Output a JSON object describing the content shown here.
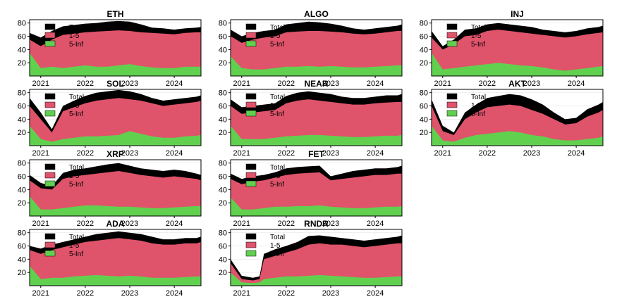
{
  "colors": {
    "total": "#000000",
    "short": "#df536b",
    "long": "#61d04f",
    "axis": "#000000",
    "background": "#ffffff"
  },
  "chart_data": [
    {
      "type": "area",
      "title": "ETH",
      "x": [
        2020.75,
        2021.0,
        2021.25,
        2021.5,
        2021.75,
        2022.0,
        2022.25,
        2022.5,
        2022.75,
        2023.0,
        2023.25,
        2023.5,
        2023.75,
        2024.0,
        2024.25,
        2024.5,
        2024.6
      ],
      "series": [
        {
          "name": "Total",
          "values": [
            65,
            58,
            68,
            75,
            77,
            79,
            80,
            82,
            83,
            82,
            78,
            73,
            72,
            70,
            72,
            73,
            74
          ]
        },
        {
          "name": "1-5",
          "values": [
            55,
            45,
            55,
            62,
            64,
            66,
            67,
            68,
            69,
            68,
            66,
            65,
            64,
            63,
            65,
            66,
            66
          ]
        },
        {
          "name": "5-Inf",
          "values": [
            35,
            12,
            14,
            12,
            14,
            16,
            14,
            14,
            16,
            18,
            15,
            13,
            12,
            12,
            14,
            14,
            14
          ]
        }
      ],
      "ylim": [
        0,
        85
      ],
      "yticks": [
        20,
        40,
        60,
        80
      ],
      "xticks": [
        "2021",
        "2022",
        "2023",
        "2024"
      ],
      "xlim": [
        2020.75,
        2024.6
      ],
      "legend": "top-left"
    },
    {
      "type": "area",
      "title": "ALGO",
      "x": [
        2020.75,
        2021.0,
        2021.25,
        2021.5,
        2021.75,
        2022.0,
        2022.25,
        2022.5,
        2022.75,
        2023.0,
        2023.25,
        2023.5,
        2023.75,
        2024.0,
        2024.25,
        2024.5,
        2024.6
      ],
      "series": [
        {
          "name": "Total",
          "values": [
            70,
            60,
            65,
            68,
            70,
            78,
            80,
            82,
            81,
            79,
            76,
            72,
            70,
            72,
            74,
            76,
            78
          ]
        },
        {
          "name": "1-5",
          "values": [
            60,
            50,
            55,
            58,
            60,
            66,
            67,
            68,
            68,
            67,
            66,
            64,
            63,
            64,
            66,
            68,
            68
          ]
        },
        {
          "name": "5-Inf",
          "values": [
            30,
            12,
            10,
            10,
            12,
            14,
            14,
            15,
            14,
            15,
            14,
            13,
            13,
            14,
            15,
            16,
            16
          ]
        }
      ],
      "ylim": [
        0,
        85
      ],
      "yticks": [
        20,
        40,
        60,
        80
      ],
      "xticks": [
        "2021",
        "2022",
        "2023",
        "2024"
      ],
      "xlim": [
        2020.75,
        2024.6
      ],
      "legend": "top-left"
    },
    {
      "type": "area",
      "title": "INJ",
      "x": [
        2020.75,
        2021.0,
        2021.25,
        2021.5,
        2021.75,
        2022.0,
        2022.25,
        2022.5,
        2022.75,
        2023.0,
        2023.25,
        2023.5,
        2023.75,
        2024.0,
        2024.25,
        2024.5,
        2024.6
      ],
      "series": [
        {
          "name": "Total",
          "values": [
            68,
            45,
            55,
            70,
            72,
            78,
            80,
            78,
            76,
            74,
            70,
            68,
            66,
            68,
            72,
            74,
            76
          ]
        },
        {
          "name": "1-5",
          "values": [
            58,
            40,
            48,
            60,
            62,
            68,
            70,
            68,
            66,
            64,
            62,
            60,
            58,
            60,
            63,
            65,
            66
          ]
        },
        {
          "name": "5-Inf",
          "values": [
            35,
            10,
            12,
            14,
            16,
            18,
            20,
            18,
            16,
            15,
            13,
            10,
            8,
            10,
            12,
            14,
            15
          ]
        }
      ],
      "ylim": [
        0,
        85
      ],
      "yticks": [
        20,
        40,
        60,
        80
      ],
      "xticks": [
        "2021",
        "2022",
        "2023",
        "2024"
      ],
      "xlim": [
        2020.75,
        2024.6
      ],
      "legend": "top-left"
    },
    {
      "type": "area",
      "title": "SOL",
      "x": [
        2020.75,
        2021.0,
        2021.25,
        2021.5,
        2021.75,
        2022.0,
        2022.25,
        2022.5,
        2022.75,
        2023.0,
        2023.25,
        2023.5,
        2023.75,
        2024.0,
        2024.25,
        2024.5,
        2024.6
      ],
      "series": [
        {
          "name": "Total",
          "values": [
            72,
            50,
            25,
            60,
            68,
            75,
            80,
            82,
            84,
            82,
            78,
            72,
            68,
            70,
            72,
            74,
            76
          ]
        },
        {
          "name": "1-5",
          "values": [
            60,
            40,
            20,
            52,
            58,
            64,
            68,
            70,
            72,
            70,
            68,
            64,
            60,
            62,
            64,
            66,
            68
          ]
        },
        {
          "name": "5-Inf",
          "values": [
            30,
            10,
            6,
            10,
            12,
            14,
            14,
            15,
            16,
            22,
            18,
            14,
            12,
            12,
            14,
            15,
            16
          ]
        }
      ],
      "ylim": [
        0,
        85
      ],
      "yticks": [
        20,
        40,
        60,
        80
      ],
      "xticks": [
        "2021",
        "2022",
        "2023",
        "2024"
      ],
      "xlim": [
        2020.75,
        2024.6
      ],
      "legend": "top-left"
    },
    {
      "type": "area",
      "title": "NEAR",
      "x": [
        2020.75,
        2021.0,
        2021.25,
        2021.5,
        2021.75,
        2022.0,
        2022.25,
        2022.5,
        2022.75,
        2023.0,
        2023.25,
        2023.5,
        2023.75,
        2024.0,
        2024.25,
        2024.5,
        2024.6
      ],
      "series": [
        {
          "name": "Total",
          "values": [
            70,
            58,
            60,
            62,
            64,
            75,
            80,
            82,
            80,
            78,
            74,
            72,
            72,
            74,
            76,
            76,
            78
          ]
        },
        {
          "name": "1-5",
          "values": [
            60,
            48,
            50,
            52,
            54,
            64,
            68,
            70,
            68,
            66,
            64,
            62,
            62,
            64,
            65,
            66,
            66
          ]
        },
        {
          "name": "5-Inf",
          "values": [
            30,
            10,
            10,
            10,
            12,
            14,
            15,
            16,
            16,
            15,
            14,
            13,
            13,
            14,
            15,
            15,
            16
          ]
        }
      ],
      "ylim": [
        0,
        85
      ],
      "yticks": [
        20,
        40,
        60,
        80
      ],
      "xticks": [
        "2021",
        "2022",
        "2023",
        "2024"
      ],
      "xlim": [
        2020.75,
        2024.6
      ],
      "legend": "top-left"
    },
    {
      "type": "area",
      "title": "AKT",
      "x": [
        2020.75,
        2021.0,
        2021.25,
        2021.5,
        2021.75,
        2022.0,
        2022.25,
        2022.5,
        2022.75,
        2023.0,
        2023.25,
        2023.5,
        2023.75,
        2024.0,
        2024.25,
        2024.5,
        2024.6
      ],
      "series": [
        {
          "name": "Total",
          "values": [
            70,
            30,
            20,
            50,
            62,
            72,
            75,
            78,
            76,
            70,
            62,
            50,
            40,
            42,
            55,
            62,
            66
          ]
        },
        {
          "name": "1-5",
          "values": [
            60,
            22,
            16,
            40,
            50,
            58,
            60,
            62,
            60,
            54,
            48,
            40,
            32,
            34,
            44,
            50,
            54
          ]
        },
        {
          "name": "5-Inf",
          "values": [
            30,
            8,
            6,
            12,
            16,
            18,
            20,
            22,
            20,
            16,
            14,
            10,
            8,
            8,
            10,
            12,
            14
          ]
        }
      ],
      "ylim": [
        0,
        85
      ],
      "yticks": [
        20,
        40,
        60,
        80
      ],
      "xticks": [
        "2021",
        "2022",
        "2023",
        "2024"
      ],
      "xlim": [
        2020.75,
        2024.6
      ],
      "legend": "top-left"
    },
    {
      "type": "area",
      "title": "XRP",
      "x": [
        2020.75,
        2021.0,
        2021.25,
        2021.5,
        2021.75,
        2022.0,
        2022.25,
        2022.5,
        2022.75,
        2023.0,
        2023.25,
        2023.5,
        2023.75,
        2024.0,
        2024.25,
        2024.5,
        2024.6
      ],
      "series": [
        {
          "name": "Total",
          "values": [
            62,
            50,
            45,
            65,
            70,
            72,
            75,
            78,
            80,
            76,
            72,
            70,
            68,
            70,
            68,
            64,
            62
          ]
        },
        {
          "name": "1-5",
          "values": [
            54,
            42,
            40,
            56,
            60,
            62,
            64,
            66,
            68,
            65,
            62,
            60,
            58,
            60,
            58,
            56,
            54
          ]
        },
        {
          "name": "5-Inf",
          "values": [
            30,
            10,
            10,
            12,
            14,
            16,
            16,
            15,
            14,
            14,
            13,
            12,
            12,
            13,
            14,
            15,
            15
          ]
        }
      ],
      "ylim": [
        0,
        85
      ],
      "yticks": [
        20,
        40,
        60,
        80
      ],
      "xticks": [
        "2021",
        "2022",
        "2023",
        "2024"
      ],
      "xlim": [
        2020.75,
        2024.6
      ],
      "legend": "top-left"
    },
    {
      "type": "area",
      "title": "FET",
      "x": [
        2020.75,
        2021.0,
        2021.25,
        2021.5,
        2021.75,
        2022.0,
        2022.25,
        2022.5,
        2022.75,
        2023.0,
        2023.25,
        2023.5,
        2023.75,
        2024.0,
        2024.25,
        2024.5,
        2024.6
      ],
      "series": [
        {
          "name": "Total",
          "values": [
            64,
            56,
            60,
            62,
            66,
            72,
            74,
            75,
            76,
            60,
            64,
            68,
            70,
            72,
            72,
            74,
            76
          ]
        },
        {
          "name": "1-5",
          "values": [
            56,
            48,
            52,
            54,
            58,
            62,
            64,
            65,
            66,
            54,
            56,
            58,
            60,
            62,
            62,
            64,
            64
          ]
        },
        {
          "name": "5-Inf",
          "values": [
            28,
            10,
            10,
            12,
            14,
            14,
            15,
            15,
            16,
            14,
            13,
            12,
            12,
            13,
            14,
            14,
            15
          ]
        }
      ],
      "ylim": [
        0,
        85
      ],
      "yticks": [
        20,
        40,
        60,
        80
      ],
      "xticks": [
        "2021",
        "2022",
        "2023",
        "2024"
      ],
      "xlim": [
        2020.75,
        2024.6
      ],
      "legend": "top-left"
    },
    {
      "type": "area",
      "title": "ADA",
      "x": [
        2020.75,
        2021.0,
        2021.25,
        2021.5,
        2021.75,
        2022.0,
        2022.25,
        2022.5,
        2022.75,
        2023.0,
        2023.25,
        2023.5,
        2023.75,
        2024.0,
        2024.25,
        2024.5,
        2024.6
      ],
      "series": [
        {
          "name": "Total",
          "values": [
            60,
            56,
            62,
            66,
            70,
            74,
            78,
            80,
            82,
            80,
            78,
            74,
            70,
            70,
            72,
            72,
            74
          ]
        },
        {
          "name": "1-5",
          "values": [
            54,
            48,
            54,
            58,
            62,
            66,
            68,
            70,
            72,
            70,
            68,
            64,
            62,
            62,
            64,
            64,
            66
          ]
        },
        {
          "name": "5-Inf",
          "values": [
            30,
            10,
            12,
            12,
            14,
            15,
            16,
            15,
            14,
            15,
            14,
            12,
            12,
            12,
            13,
            14,
            14
          ]
        }
      ],
      "ylim": [
        0,
        85
      ],
      "yticks": [
        20,
        40,
        60,
        80
      ],
      "xticks": [
        "2021",
        "2022",
        "2023",
        "2024"
      ],
      "xlim": [
        2020.75,
        2024.6
      ],
      "legend": "top-left"
    },
    {
      "type": "area",
      "title": "RNDR",
      "x": [
        2020.75,
        2021.0,
        2021.25,
        2021.4,
        2021.5,
        2021.75,
        2022.0,
        2022.25,
        2022.5,
        2022.75,
        2023.0,
        2023.25,
        2023.5,
        2023.75,
        2024.0,
        2024.25,
        2024.5,
        2024.6
      ],
      "series": [
        {
          "name": "Total",
          "values": [
            40,
            15,
            12,
            14,
            48,
            55,
            60,
            66,
            75,
            76,
            74,
            72,
            70,
            68,
            70,
            72,
            74,
            76
          ]
        },
        {
          "name": "1-5",
          "values": [
            34,
            10,
            8,
            10,
            40,
            45,
            50,
            55,
            62,
            64,
            62,
            62,
            60,
            58,
            60,
            62,
            64,
            64
          ]
        },
        {
          "name": "5-Inf",
          "values": [
            20,
            5,
            4,
            5,
            10,
            12,
            14,
            14,
            15,
            16,
            15,
            14,
            13,
            12,
            12,
            13,
            14,
            14
          ]
        }
      ],
      "ylim": [
        0,
        85
      ],
      "yticks": [
        20,
        40,
        60,
        80
      ],
      "xticks": [
        "2021",
        "2022",
        "2023",
        "2024"
      ],
      "xlim": [
        2020.75,
        2024.6
      ],
      "legend": "top-left"
    }
  ]
}
